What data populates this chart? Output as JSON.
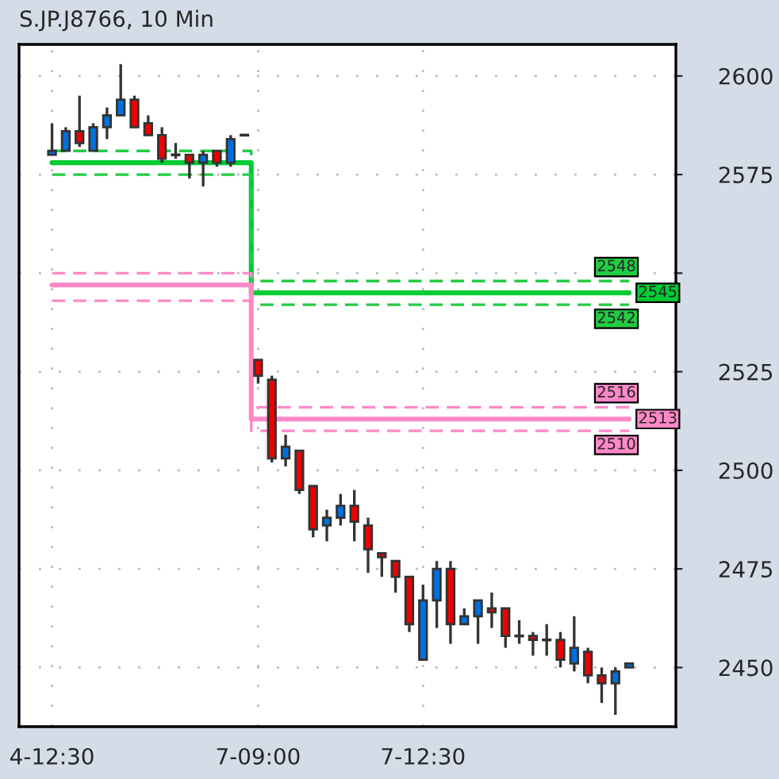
{
  "chart_data": {
    "type": "candlestick",
    "title": "S.JP.J8766, 10 Min",
    "categories": [
      "4-12:30",
      null,
      null,
      null,
      null,
      null,
      null,
      null,
      null,
      null,
      null,
      null,
      null,
      null,
      null,
      "7-09:00",
      null,
      null,
      null,
      null,
      null,
      null,
      null,
      null,
      null,
      null,
      null,
      "7-12:30",
      null,
      null,
      null,
      null,
      null,
      null,
      null,
      null,
      null,
      null,
      null,
      null,
      null,
      null,
      null
    ],
    "ohlc": [
      [
        2580,
        2588,
        2580,
        2581
      ],
      [
        2581,
        2587,
        2581,
        2586
      ],
      [
        2586,
        2595,
        2582,
        2583
      ],
      [
        2581,
        2588,
        2581,
        2587
      ],
      [
        2587,
        2592,
        2584,
        2590
      ],
      [
        2590,
        2603,
        2590,
        2594
      ],
      [
        2594,
        2595,
        2587,
        2587
      ],
      [
        2588,
        2590,
        2585,
        2585
      ],
      [
        2585,
        2587,
        2578,
        2579
      ],
      [
        2580,
        2583,
        2579,
        2580
      ],
      [
        2580,
        2580,
        2574,
        2578
      ],
      [
        2578,
        2581,
        2572,
        2580
      ],
      [
        2581,
        2581,
        2577,
        2578
      ],
      [
        2578,
        2585,
        2577,
        2584
      ],
      [
        2585,
        2585,
        2585,
        2585
      ],
      [
        2528,
        2528,
        2522,
        2524
      ],
      [
        2523,
        2524,
        2502,
        2503
      ],
      [
        2503,
        2509,
        2501,
        2506
      ],
      [
        2505,
        2505,
        2494,
        2495
      ],
      [
        2496,
        2496,
        2483,
        2485
      ],
      [
        2486,
        2490,
        2482,
        2488
      ],
      [
        2488,
        2494,
        2486,
        2491
      ],
      [
        2491,
        2495,
        2482,
        2487
      ],
      [
        2486,
        2488,
        2474,
        2480
      ],
      [
        2479,
        2479,
        2473,
        2478
      ],
      [
        2477,
        2477,
        2469,
        2473
      ],
      [
        2473,
        2473,
        2459,
        2461
      ],
      [
        2452,
        2471,
        2452,
        2467
      ],
      [
        2467,
        2477,
        2460,
        2475
      ],
      [
        2475,
        2477,
        2456,
        2461
      ],
      [
        2461,
        2465,
        2461,
        2463
      ],
      [
        2463,
        2467,
        2456,
        2467
      ],
      [
        2465,
        2469,
        2460,
        2464
      ],
      [
        2465,
        2465,
        2455,
        2458
      ],
      [
        2458,
        2462,
        2456,
        2458
      ],
      [
        2458,
        2459,
        2453,
        2457
      ],
      [
        2457,
        2461,
        2453,
        2457
      ],
      [
        2457,
        2459,
        2450,
        2452
      ],
      [
        2451,
        2463,
        2449,
        2455
      ],
      [
        2454,
        2455,
        2446,
        2448
      ],
      [
        2448,
        2450,
        2441,
        2446
      ],
      [
        2446,
        2450,
        2438,
        2449
      ],
      [
        2450,
        2451,
        2450,
        2451
      ]
    ],
    "colors": [
      "#0070e0",
      "#0070e0",
      "#ee0000",
      "#0070e0",
      "#0070e0",
      "#0070e0",
      "#ee0000",
      "#ee0000",
      "#ee0000",
      "#333333",
      "#ee0000",
      "#0070e0",
      "#ee0000",
      "#0070e0",
      "#333333",
      "#ee0000",
      "#ee0000",
      "#0070e0",
      "#ee0000",
      "#ee0000",
      "#0070e0",
      "#0070e0",
      "#ee0000",
      "#ee0000",
      "#ee0000",
      "#ee0000",
      "#ee0000",
      "#0070e0",
      "#0070e0",
      "#ee0000",
      "#0070e0",
      "#0070e0",
      "#ee0000",
      "#ee0000",
      "#333333",
      "#ee0000",
      "#333333",
      "#ee0000",
      "#0070e0",
      "#ee0000",
      "#ee0000",
      "#0070e0",
      "#0070e0"
    ],
    "series": [
      {
        "type": "step",
        "color": "#22cc44",
        "line_style": "dashed",
        "values": [
          2581,
          2581,
          2581,
          2581,
          2581,
          2581,
          2581,
          2581,
          2581,
          2581,
          2581,
          2581,
          2581,
          2581,
          2581,
          2548,
          2548,
          2548,
          2548,
          2548,
          2548,
          2548,
          2548,
          2548,
          2548,
          2548,
          2548,
          2548,
          2548,
          2548,
          2548,
          2548,
          2548,
          2548,
          2548,
          2548,
          2548,
          2548,
          2548,
          2548,
          2548,
          2548,
          2548
        ],
        "value_labels": [
          null,
          null,
          null,
          null,
          null,
          null,
          null,
          null,
          null,
          null,
          null,
          null,
          null,
          null,
          null,
          null,
          null,
          null,
          null,
          null,
          null,
          null,
          null,
          null,
          null,
          null,
          null,
          null,
          null,
          null,
          null,
          null,
          null,
          null,
          null,
          null,
          null,
          null,
          null,
          null,
          null,
          null,
          "2548"
        ]
      },
      {
        "type": "step",
        "color": "#00cc33",
        "line_style": "solid",
        "values": [
          2578,
          2578,
          2578,
          2578,
          2578,
          2578,
          2578,
          2578,
          2578,
          2578,
          2578,
          2578,
          2578,
          2578,
          2578,
          2545,
          2545,
          2545,
          2545,
          2545,
          2545,
          2545,
          2545,
          2545,
          2545,
          2545,
          2545,
          2545,
          2545,
          2545,
          2545,
          2545,
          2545,
          2545,
          2545,
          2545,
          2545,
          2545,
          2545,
          2545,
          2545,
          2545,
          2545
        ],
        "value_labels": [
          null,
          null,
          null,
          null,
          null,
          null,
          null,
          null,
          null,
          null,
          null,
          null,
          null,
          null,
          null,
          null,
          null,
          null,
          null,
          null,
          null,
          null,
          null,
          null,
          null,
          null,
          null,
          null,
          null,
          null,
          null,
          null,
          null,
          null,
          null,
          null,
          null,
          null,
          null,
          null,
          null,
          null,
          "2545"
        ]
      },
      {
        "type": "step",
        "color": "#22cc44",
        "line_style": "dashed",
        "values": [
          2575,
          2575,
          2575,
          2575,
          2575,
          2575,
          2575,
          2575,
          2575,
          2575,
          2575,
          2575,
          2575,
          2575,
          2575,
          2542,
          2542,
          2542,
          2542,
          2542,
          2542,
          2542,
          2542,
          2542,
          2542,
          2542,
          2542,
          2542,
          2542,
          2542,
          2542,
          2542,
          2542,
          2542,
          2542,
          2542,
          2542,
          2542,
          2542,
          2542,
          2542,
          2542,
          2542
        ],
        "value_labels": [
          null,
          null,
          null,
          null,
          null,
          null,
          null,
          null,
          null,
          null,
          null,
          null,
          null,
          null,
          null,
          null,
          null,
          null,
          null,
          null,
          null,
          null,
          null,
          null,
          null,
          null,
          null,
          null,
          null,
          null,
          null,
          null,
          null,
          null,
          null,
          null,
          null,
          null,
          null,
          null,
          null,
          null,
          "2542"
        ]
      },
      {
        "type": "step",
        "color": "#ff88c8",
        "line_style": "dashed",
        "values": [
          2550,
          2550,
          2550,
          2550,
          2550,
          2550,
          2550,
          2550,
          2550,
          2550,
          2550,
          2550,
          2550,
          2550,
          2550,
          2516,
          2516,
          2516,
          2516,
          2516,
          2516,
          2516,
          2516,
          2516,
          2516,
          2516,
          2516,
          2516,
          2516,
          2516,
          2516,
          2516,
          2516,
          2516,
          2516,
          2516,
          2516,
          2516,
          2516,
          2516,
          2516,
          2516,
          2516
        ],
        "value_labels": [
          null,
          null,
          null,
          null,
          null,
          null,
          null,
          null,
          null,
          null,
          null,
          null,
          null,
          null,
          null,
          null,
          null,
          null,
          null,
          null,
          null,
          null,
          null,
          null,
          null,
          null,
          null,
          null,
          null,
          null,
          null,
          null,
          null,
          null,
          null,
          null,
          null,
          null,
          null,
          null,
          null,
          null,
          "2516"
        ]
      },
      {
        "type": "step",
        "color": "#ff88c8",
        "line_style": "solid",
        "values": [
          2547,
          2547,
          2547,
          2547,
          2547,
          2547,
          2547,
          2547,
          2547,
          2547,
          2547,
          2547,
          2547,
          2547,
          2547,
          2513,
          2513,
          2513,
          2513,
          2513,
          2513,
          2513,
          2513,
          2513,
          2513,
          2513,
          2513,
          2513,
          2513,
          2513,
          2513,
          2513,
          2513,
          2513,
          2513,
          2513,
          2513,
          2513,
          2513,
          2513,
          2513,
          2513,
          2513
        ],
        "value_labels": [
          null,
          null,
          null,
          null,
          null,
          null,
          null,
          null,
          null,
          null,
          null,
          null,
          null,
          null,
          null,
          null,
          null,
          null,
          null,
          null,
          null,
          null,
          null,
          null,
          null,
          null,
          null,
          null,
          null,
          null,
          null,
          null,
          null,
          null,
          null,
          null,
          null,
          null,
          null,
          null,
          null,
          null,
          "2513"
        ]
      },
      {
        "type": "step",
        "color": "#ff88c8",
        "line_style": "dashed",
        "values": [
          2543,
          2543,
          2543,
          2543,
          2543,
          2543,
          2543,
          2543,
          2543,
          2543,
          2543,
          2543,
          2543,
          2543,
          2543,
          2510,
          2510,
          2510,
          2510,
          2510,
          2510,
          2510,
          2510,
          2510,
          2510,
          2510,
          2510,
          2510,
          2510,
          2510,
          2510,
          2510,
          2510,
          2510,
          2510,
          2510,
          2510,
          2510,
          2510,
          2510,
          2510,
          2510,
          2510
        ],
        "value_labels": [
          null,
          null,
          null,
          null,
          null,
          null,
          null,
          null,
          null,
          null,
          null,
          null,
          null,
          null,
          null,
          null,
          null,
          null,
          null,
          null,
          null,
          null,
          null,
          null,
          null,
          null,
          null,
          null,
          null,
          null,
          null,
          null,
          null,
          null,
          null,
          null,
          null,
          null,
          null,
          null,
          null,
          null,
          "2510"
        ]
      }
    ],
    "ylim": [
      2435,
      2608
    ],
    "yticks": [
      2450,
      2475,
      2500,
      2525,
      {
        "value": 2550,
        "label": null
      },
      2575,
      2600
    ],
    "grid": true
  }
}
